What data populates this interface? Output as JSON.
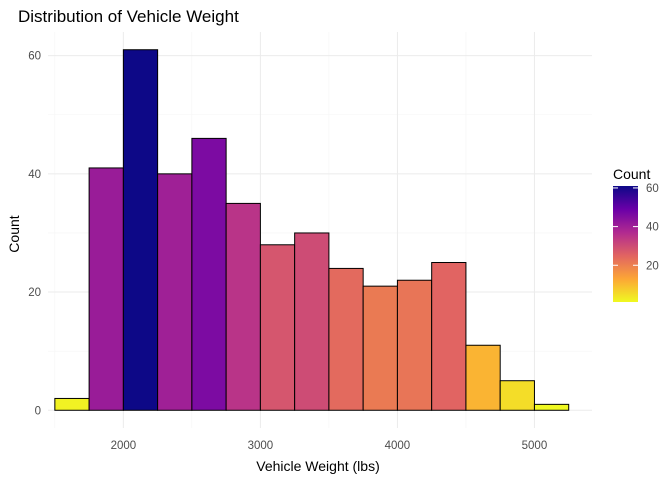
{
  "chart_data": {
    "type": "bar",
    "title": "Distribution of Vehicle Weight",
    "xlabel": "Vehicle Weight (lbs)",
    "ylabel": "Count",
    "bin_width": 250,
    "bins": [
      {
        "start": 1500,
        "end": 1750,
        "count": 2
      },
      {
        "start": 1750,
        "end": 2000,
        "count": 41
      },
      {
        "start": 2000,
        "end": 2250,
        "count": 61
      },
      {
        "start": 2250,
        "end": 2500,
        "count": 40
      },
      {
        "start": 2500,
        "end": 2750,
        "count": 46
      },
      {
        "start": 2750,
        "end": 3000,
        "count": 35
      },
      {
        "start": 3000,
        "end": 3250,
        "count": 28
      },
      {
        "start": 3250,
        "end": 3500,
        "count": 30
      },
      {
        "start": 3500,
        "end": 3750,
        "count": 24
      },
      {
        "start": 3750,
        "end": 4000,
        "count": 21
      },
      {
        "start": 4000,
        "end": 4250,
        "count": 22
      },
      {
        "start": 4250,
        "end": 4500,
        "count": 25
      },
      {
        "start": 4500,
        "end": 4750,
        "count": 11
      },
      {
        "start": 4750,
        "end": 5000,
        "count": 5
      },
      {
        "start": 5000,
        "end": 5250,
        "count": 1
      }
    ],
    "xlim": [
      1450,
      5420
    ],
    "ylim": [
      -3,
      64
    ],
    "x_ticks": [
      2000,
      3000,
      4000,
      5000
    ],
    "x_tick_labels": [
      "2000",
      "3000",
      "4000",
      "5000"
    ],
    "y_ticks": [
      0,
      20,
      40,
      60
    ],
    "y_tick_labels": [
      "0",
      "20",
      "40",
      "60"
    ],
    "grid": true,
    "legend": {
      "title": "Count",
      "placement": "right",
      "type": "colorbar",
      "range": [
        1,
        61
      ],
      "ticks": [
        20,
        40,
        60
      ],
      "tick_labels": [
        "20",
        "40",
        "60"
      ],
      "palette": "plasma",
      "colors": [
        "#0d0887",
        "#6a00a8",
        "#b12a90",
        "#e16462",
        "#fca636",
        "#f0f921"
      ]
    }
  }
}
